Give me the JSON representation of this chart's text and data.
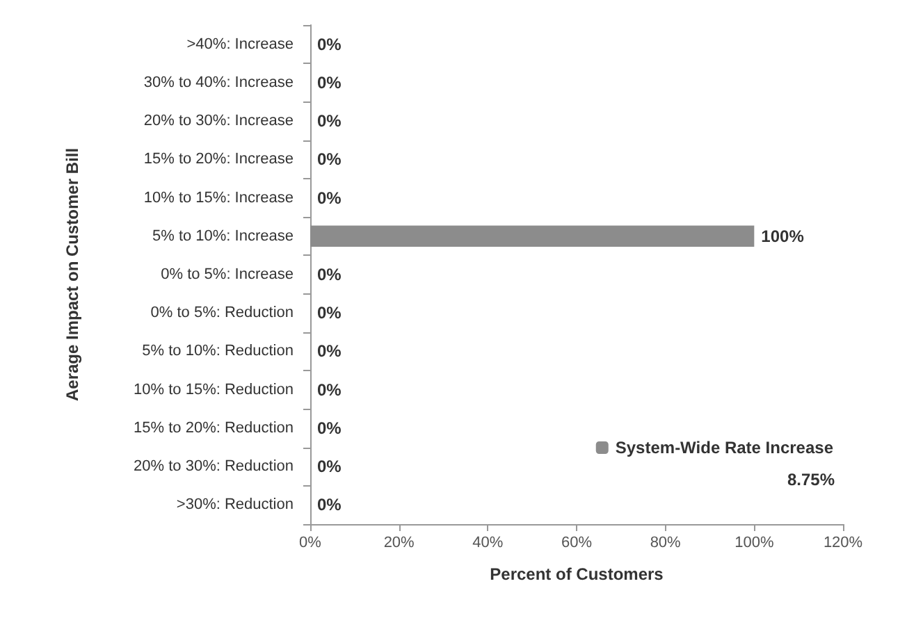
{
  "chart_data": {
    "type": "bar",
    "orientation": "horizontal",
    "xlabel": "Percent of Customers",
    "ylabel": "Aerage Impact on Customer Bill",
    "categories": [
      ">40%: Increase",
      "30% to 40%: Increase",
      "20% to 30%: Increase",
      "15% to 20%: Increase",
      "10% to 15%: Increase",
      "5% to 10%: Increase",
      "0% to 5%: Increase",
      "0% to 5%: Reduction",
      "5% to 10%: Reduction",
      "10% to 15%: Reduction",
      "15% to 20%: Reduction",
      "20% to 30%: Reduction",
      ">30%: Reduction"
    ],
    "series": [
      {
        "name": "System-Wide Rate Increase",
        "color": "#8c8c8c",
        "values": [
          0,
          0,
          0,
          0,
          0,
          100,
          0,
          0,
          0,
          0,
          0,
          0,
          0
        ],
        "value_labels": [
          "0%",
          "0%",
          "0%",
          "0%",
          "0%",
          "100%",
          "0%",
          "0%",
          "0%",
          "0%",
          "0%",
          "0%",
          "0%"
        ]
      }
    ],
    "xlim": [
      0,
      120
    ],
    "xticks": [
      {
        "value": 0,
        "label": "0%"
      },
      {
        "value": 20,
        "label": "20%"
      },
      {
        "value": 40,
        "label": "40%"
      },
      {
        "value": 60,
        "label": "60%"
      },
      {
        "value": 80,
        "label": "80%"
      },
      {
        "value": 100,
        "label": "100%"
      },
      {
        "value": 120,
        "label": "120%"
      }
    ],
    "grid": false,
    "legend": "bottom right",
    "annotations": [
      "8.75%"
    ]
  }
}
